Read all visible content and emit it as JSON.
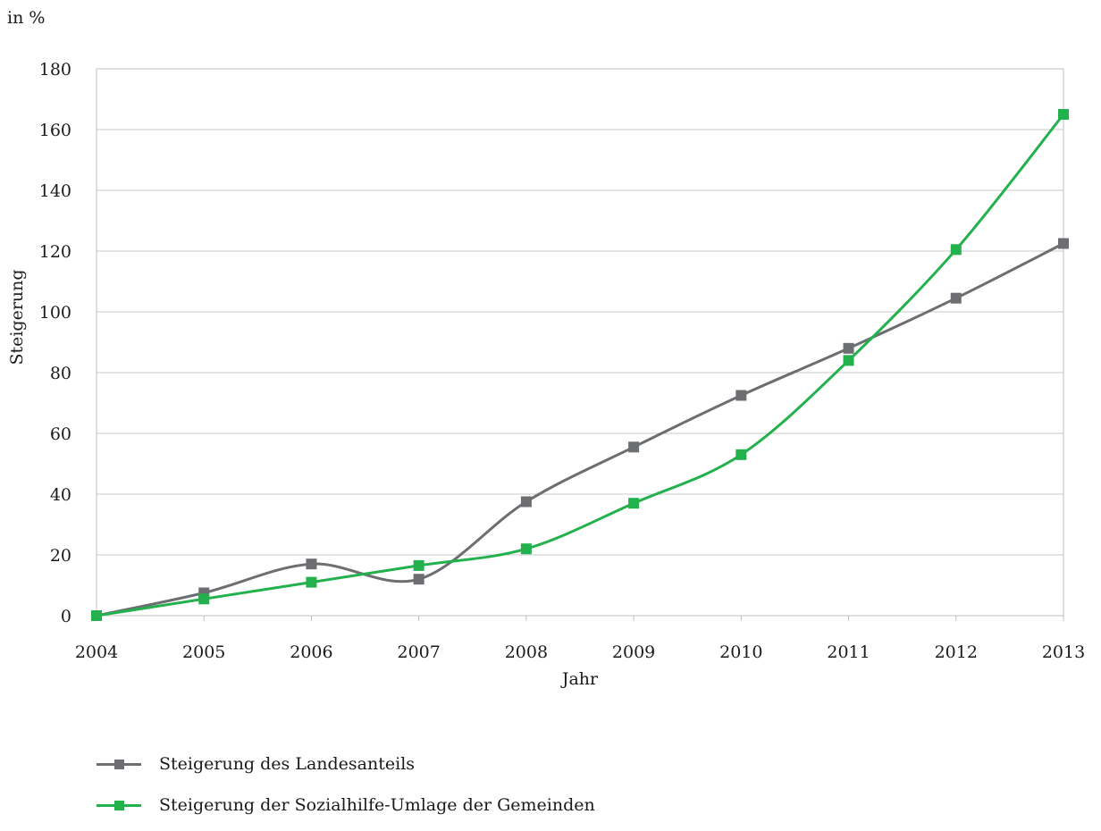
{
  "chart_data": {
    "type": "line",
    "unit_label": "in %",
    "ylabel": "Steigerung",
    "xlabel": "Jahr",
    "ylim": [
      0,
      180
    ],
    "yticks": [
      0,
      20,
      40,
      60,
      80,
      100,
      120,
      140,
      160,
      180
    ],
    "x": [
      2004,
      2005,
      2006,
      2007,
      2008,
      2009,
      2010,
      2011,
      2012,
      2013
    ],
    "grid": "horizontal",
    "legend_position": "bottom-left",
    "series": [
      {
        "name": "Steigerung des Landesanteils",
        "color": "#6d6e71",
        "values": [
          0,
          7.5,
          17,
          12,
          37.5,
          55.5,
          72.5,
          88,
          104.5,
          122.5
        ]
      },
      {
        "name": "Steigerung der Sozialhilfe-Umlage der Gemeinden",
        "color": "#22b14c",
        "values": [
          0,
          5.5,
          11,
          16.5,
          22,
          37,
          53,
          84,
          120.5,
          165
        ]
      }
    ]
  }
}
